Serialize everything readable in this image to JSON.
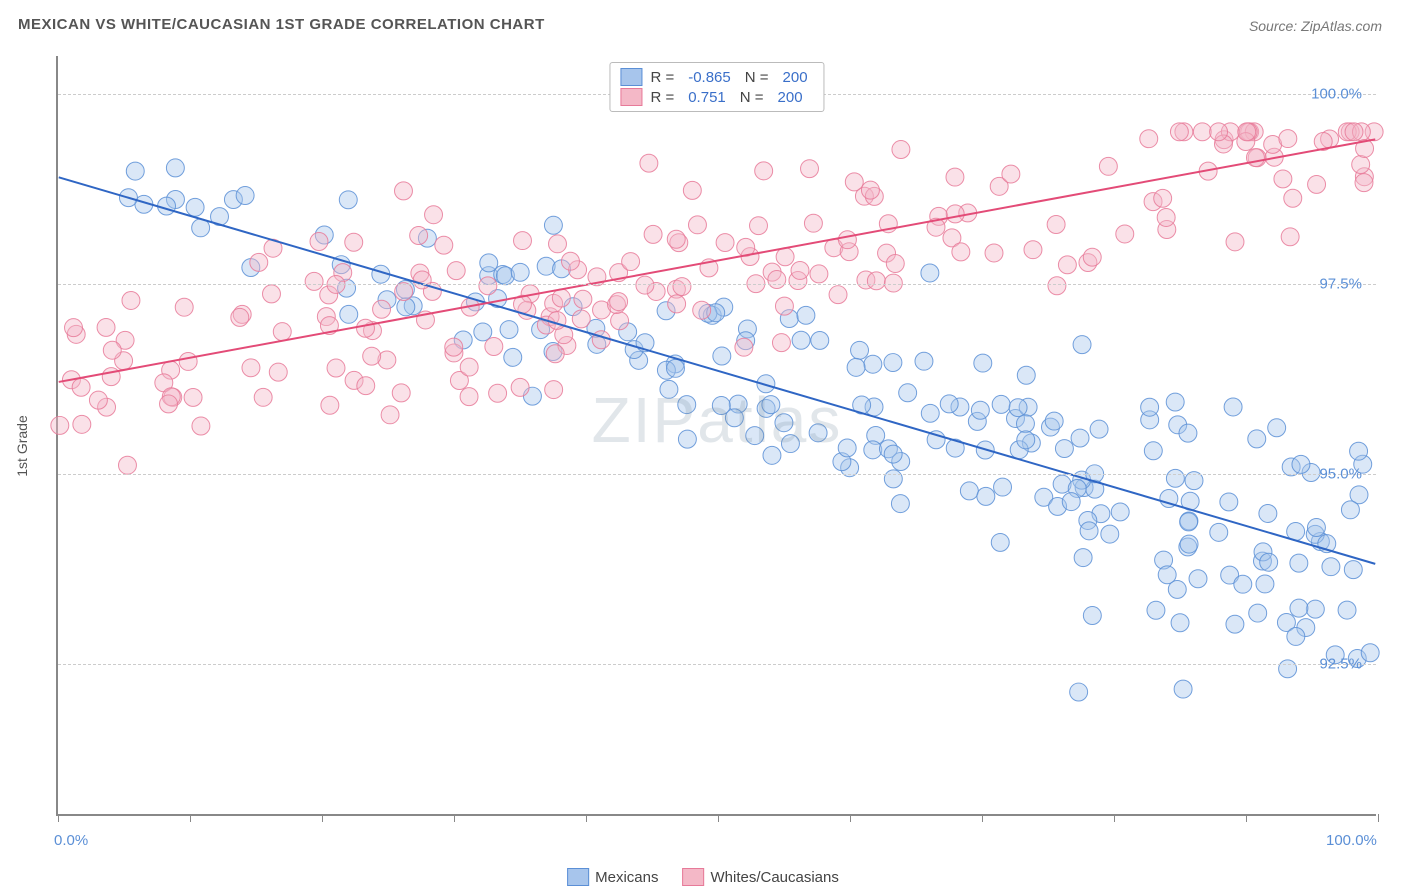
{
  "title": "MEXICAN VS WHITE/CAUCASIAN 1ST GRADE CORRELATION CHART",
  "source": "Source: ZipAtlas.com",
  "watermark": "ZIPatlas",
  "y_axis_label": "1st Grade",
  "chart": {
    "type": "scatter",
    "background": "#ffffff",
    "grid_color": "#cccccc",
    "axis_color": "#888888",
    "x_min": 0,
    "x_max": 100,
    "y_min": 90.5,
    "y_max": 100.5,
    "y_gridlines": [
      92.5,
      95.0,
      97.5,
      100.0
    ],
    "y_tick_labels": [
      "92.5%",
      "95.0%",
      "97.5%",
      "100.0%"
    ],
    "x_ticks": [
      0,
      10,
      20,
      30,
      40,
      50,
      60,
      70,
      80,
      90,
      100
    ],
    "x_min_label": "0.0%",
    "x_max_label": "100.0%",
    "marker_radius": 9,
    "marker_opacity": 0.42,
    "marker_stroke_opacity": 0.85,
    "line_width": 2,
    "series": [
      {
        "name": "Mexicans",
        "fill": "#a7c5ec",
        "stroke": "#5b8fd6",
        "line_color": "#2f66c4",
        "R": "-0.865",
        "N": "200",
        "trend": {
          "x1": 0,
          "y1": 98.9,
          "x2": 100,
          "y2": 93.8
        },
        "points_seed": 11,
        "intercept": 98.9,
        "slope": -0.051,
        "scatter_sd": 0.55
      },
      {
        "name": "Whites/Caucasians",
        "fill": "#f4b8c7",
        "stroke": "#e77a99",
        "line_color": "#e34b77",
        "R": "0.751",
        "N": "200",
        "trend": {
          "x1": 0,
          "y1": 96.2,
          "x2": 100,
          "y2": 99.4
        },
        "points_seed": 29,
        "intercept": 96.2,
        "slope": 0.032,
        "scatter_sd": 0.65
      }
    ]
  },
  "legend_top": {
    "r_label": "R =",
    "n_label": "N ="
  },
  "legend_bottom_items": [
    "Mexicans",
    "Whites/Caucasians"
  ]
}
